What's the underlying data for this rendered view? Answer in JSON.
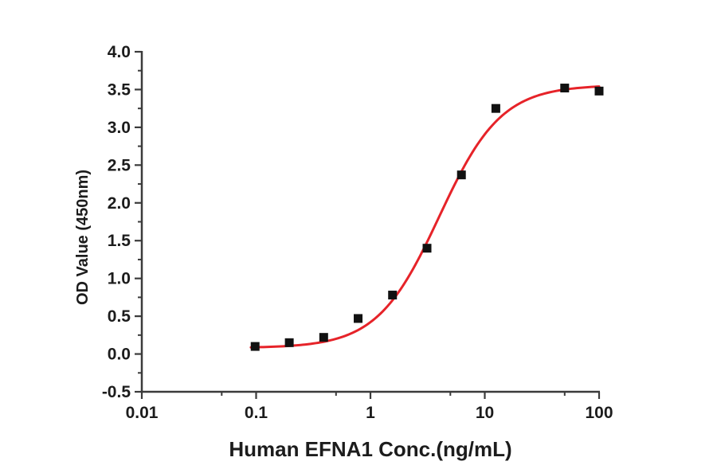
{
  "chart_data": {
    "type": "scatter",
    "title": "",
    "xlabel": "Human EFNA1 Conc.(ng/mL)",
    "ylabel": "OD Value (450nm)",
    "x_scale": "log",
    "xlim": [
      0.01,
      100
    ],
    "ylim": [
      -0.5,
      4.0
    ],
    "x_ticks": [
      "0.01",
      "0.1",
      "1",
      "10",
      "100"
    ],
    "x_minor_ticks": [
      0.05,
      0.5,
      5,
      50
    ],
    "y_ticks": [
      "4.0",
      "3.5",
      "3.0",
      "2.5",
      "2.0",
      "1.5",
      "1.0",
      "0.5",
      "0.0",
      "-0.5"
    ],
    "y_minor_step": 0.25,
    "grid": false,
    "legend": "none",
    "series": [
      {
        "name": "measured-points",
        "type": "scatter",
        "marker": "square",
        "x": [
          0.098,
          0.195,
          0.39,
          0.78,
          1.56,
          3.125,
          6.25,
          12.5,
          50,
          100
        ],
        "y": [
          0.1,
          0.15,
          0.22,
          0.47,
          0.78,
          1.4,
          2.37,
          3.25,
          3.52,
          3.48
        ]
      },
      {
        "name": "4pl-fit-curve",
        "type": "line",
        "fit": {
          "model": "4PL",
          "bottom": 0.08,
          "top": 3.56,
          "ec50": 4.0,
          "hill": 1.6,
          "x_start": 0.09,
          "x_end": 100
        }
      }
    ],
    "colors": {
      "curve": "#e62329",
      "marker": "#111111",
      "axis": "#3b3b3b",
      "text": "#1c1c1c",
      "background": "#ffffff"
    }
  }
}
